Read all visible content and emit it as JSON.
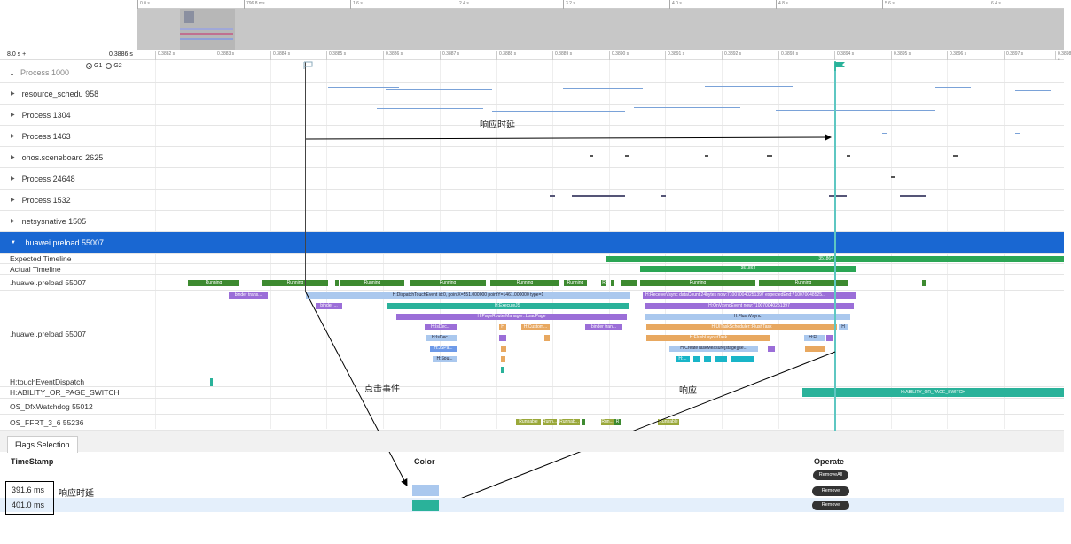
{
  "overview": {
    "ticks": [
      "0.0 s",
      "796.8 ms",
      "1.6 s",
      "2.4 s",
      "3.2 s",
      "4.0 s",
      "4.8 s",
      "5.6 s",
      "6.4 s"
    ]
  },
  "ruler": {
    "range_start": "8.0 s +",
    "range_end": "0.3886 s",
    "ticks": [
      "0.3882 s",
      "0.3883 s",
      "0.3884 s",
      "0.3885 s",
      "0.3886 s",
      "0.3887 s",
      "0.3888 s",
      "0.3889 s",
      "0.3890 s",
      "0.3891 s",
      "0.3892 s",
      "0.3893 s",
      "0.3894 s",
      "0.3895 s",
      "0.3896 s",
      "0.3897 s",
      "0.3898 s"
    ],
    "radio_g1": "G1",
    "radio_g2": "G2"
  },
  "processes": [
    {
      "label": "Process 1000"
    },
    {
      "label": "resource_schedu 958"
    },
    {
      "label": "Process 1304"
    },
    {
      "label": "Process 1463"
    },
    {
      "label": "ohos.sceneboard 2625"
    },
    {
      "label": "Process 24648"
    },
    {
      "label": "Process 1532"
    },
    {
      "label": "netsysnative 1505"
    }
  ],
  "expanded_process": {
    "label": ".huawei.preload 55007"
  },
  "subrows": {
    "expected": "Expected Timeline",
    "actual": "Actual Timeline",
    "thread_state": ".huawei.preload 55007",
    "thread_calls": ".huawei.preload 55007",
    "touch": "H:touchEventDispatch",
    "ability": "H:ABILITY_OR_PAGE_SWITCH",
    "watchdog": "OS_DfxWatchdog 55012",
    "ffrt": "OS_FFRT_3_6 55236"
  },
  "slices": {
    "expected_label": "351864",
    "actual_label": "351864",
    "running": "Running",
    "binder_transaction": "binder trans...",
    "dispatch": "H:DispatchTouchEvent id:0, pointX=551.000000 pointY=1461.000000 type=1",
    "binder_reply": "binder ...",
    "execute_js": "H:ExecuteJS",
    "page_router": "H:PageRouterManager::LoadPage",
    "isdec1": "H:IsDec...",
    "custom": "H:Custom...",
    "isdec2": "H:IsDec...",
    "jspa": "H:JSPa...",
    "sou": "H:Sou...",
    "binder_tran2": "binder tran...",
    "receive_vsync": "H:ReceiveVsync dataCount:24bytes now:710070040251397 expectedEnd:710070048525...",
    "on_vsync": "H:OnVsyncEvent now:710070040251397",
    "flush_vsync": "H:FlushVsync",
    "flush_task": "H:UITaskScheduler::FlushTask",
    "flush_layout": "H:FlushLayoutTask",
    "flush_short": "H:Fl...",
    "create_task": "H:CreateTaskMeasure[stage][se...",
    "ability_switch": "H:ABILITY_OR_PAGE_SWITCH",
    "runnable": "Runnable",
    "runn": "Runn...",
    "runnab": "Runnab...",
    "run_short": "Run...",
    "r": "R",
    "h": "H",
    "h_dots": "H:..."
  },
  "annotations": {
    "response_latency": "响应时延",
    "click_event": "点击事件",
    "response": "响应",
    "row_note": "响应时延"
  },
  "flags": {
    "tab": "Flags Selection",
    "col_timestamp": "TimeStamp",
    "col_color": "Color",
    "col_operate": "Operate",
    "remove_all": "RemoveAll",
    "rows": [
      {
        "timestamp": "391.6 ms",
        "remove": "Remove",
        "color": "#aac8ee"
      },
      {
        "timestamp": "401.0 ms",
        "remove": "Remove",
        "color": "#2ab29a"
      }
    ]
  },
  "colors": {
    "highlight": "#1967d2",
    "running": "#3d8a30",
    "expected": "#2ba655",
    "dispatch": "#aac8ee",
    "teal": "#2ab29a",
    "purple": "#9b6ed8",
    "orange": "#e8a860",
    "flag_line": "#5ec7c2"
  }
}
